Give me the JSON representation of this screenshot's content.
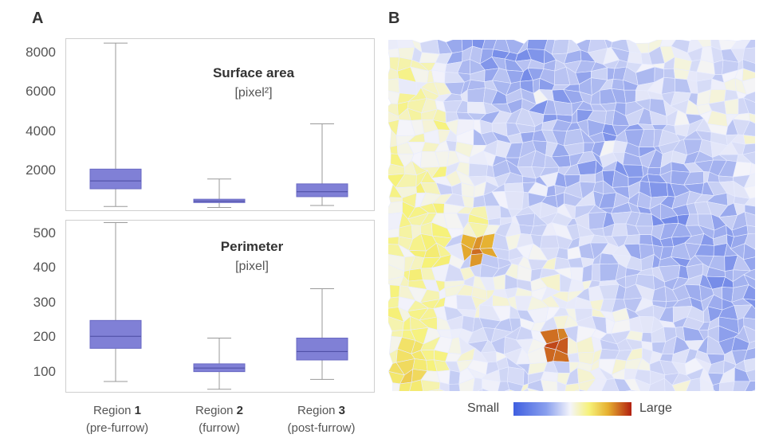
{
  "panels": {
    "a_label": "A",
    "b_label": "B"
  },
  "chart_data": [
    {
      "type": "box",
      "title": "Surface area",
      "unit": "[pixel²]",
      "categories": [
        "Region 1",
        "Region 2",
        "Region 3"
      ],
      "yticks": [
        "8000",
        "6000",
        "4000",
        "2000"
      ],
      "ylim": [
        0,
        8700
      ],
      "grid": false,
      "boxes": [
        {
          "whisker_low": 150,
          "q1": 1050,
          "median": 1450,
          "q3": 2050,
          "whisker_high": 8450
        },
        {
          "whisker_low": 100,
          "q1": 350,
          "median": 420,
          "q3": 520,
          "whisker_high": 1550
        },
        {
          "whisker_low": 200,
          "q1": 650,
          "median": 900,
          "q3": 1300,
          "whisker_high": 4350
        }
      ]
    },
    {
      "type": "box",
      "title": "Perimeter",
      "unit": "[pixel]",
      "categories": [
        "Region 1",
        "Region 2",
        "Region 3"
      ],
      "yticks": [
        "500",
        "400",
        "300",
        "200",
        "100"
      ],
      "ylim": [
        45,
        530
      ],
      "grid": false,
      "boxes": [
        {
          "whisker_low": 72,
          "q1": 166,
          "median": 200,
          "q3": 245,
          "whisker_high": 522
        },
        {
          "whisker_low": 50,
          "q1": 100,
          "median": 110,
          "q3": 122,
          "whisker_high": 195
        },
        {
          "whisker_low": 78,
          "q1": 133,
          "median": 157,
          "q3": 195,
          "whisker_high": 335
        }
      ]
    }
  ],
  "x_labels": [
    {
      "prefix": "Region ",
      "num": "1",
      "sub": "(pre-furrow)"
    },
    {
      "prefix": "Region ",
      "num": "2",
      "sub": "(furrow)"
    },
    {
      "prefix": "Region ",
      "num": "3",
      "sub": "(post-furrow)"
    }
  ],
  "heatmap": {
    "colorbar": {
      "low_label": "Small",
      "high_label": "Large"
    },
    "colors": {
      "low": "#3f5fe0",
      "mid": "#f4f4fb",
      "yellow": "#f6f27a",
      "orange": "#e6b030",
      "high": "#b22010"
    }
  }
}
